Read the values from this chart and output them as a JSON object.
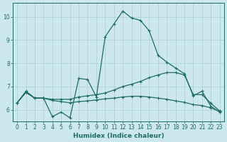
{
  "xlabel": "Humidex (Indice chaleur)",
  "ylabel": "",
  "bg_color": "#cce8ec",
  "grid_color": "#aacfd4",
  "line_color": "#1e6b65",
  "xlim": [
    -0.5,
    23.5
  ],
  "ylim": [
    5.5,
    10.6
  ],
  "xticks": [
    0,
    1,
    2,
    3,
    4,
    5,
    6,
    7,
    8,
    9,
    10,
    11,
    12,
    13,
    14,
    15,
    16,
    17,
    18,
    19,
    20,
    21,
    22,
    23
  ],
  "yticks": [
    6,
    7,
    8,
    9,
    10
  ],
  "lines": [
    {
      "x": [
        0,
        1,
        2,
        3,
        4,
        5,
        6,
        7,
        8,
        9,
        10,
        11,
        12,
        13,
        14,
        15,
        16,
        17,
        18,
        19,
        20,
        21,
        22,
        23
      ],
      "y": [
        6.3,
        6.8,
        6.5,
        6.5,
        5.7,
        5.9,
        5.65,
        7.35,
        7.3,
        6.55,
        9.15,
        9.7,
        10.25,
        9.95,
        9.85,
        9.4,
        8.35,
        8.05,
        7.8,
        7.55,
        6.6,
        6.8,
        6.15,
        5.9
      ]
    },
    {
      "x": [
        0,
        1,
        2,
        3,
        4,
        5,
        6,
        7,
        8,
        9,
        10,
        11,
        12,
        13,
        14,
        15,
        16,
        17,
        18,
        19,
        20,
        21,
        22,
        23
      ],
      "y": [
        6.3,
        6.75,
        6.5,
        6.5,
        6.45,
        6.45,
        6.45,
        6.55,
        6.6,
        6.65,
        6.72,
        6.85,
        7.0,
        7.1,
        7.22,
        7.38,
        7.5,
        7.6,
        7.6,
        7.5,
        6.65,
        6.65,
        6.28,
        5.95
      ]
    },
    {
      "x": [
        0,
        1,
        2,
        3,
        4,
        5,
        6,
        7,
        8,
        9,
        10,
        11,
        12,
        13,
        14,
        15,
        16,
        17,
        18,
        19,
        20,
        21,
        22,
        23
      ],
      "y": [
        6.3,
        6.75,
        6.5,
        6.5,
        6.4,
        6.35,
        6.3,
        6.35,
        6.38,
        6.42,
        6.47,
        6.5,
        6.55,
        6.58,
        6.58,
        6.55,
        6.5,
        6.45,
        6.38,
        6.32,
        6.22,
        6.18,
        6.08,
        5.93
      ]
    }
  ],
  "marker": "+",
  "markersize": 3.5,
  "markeredgewidth": 0.8,
  "linewidth": 0.9,
  "tick_fontsize": 5.5,
  "xlabel_fontsize": 6.5
}
